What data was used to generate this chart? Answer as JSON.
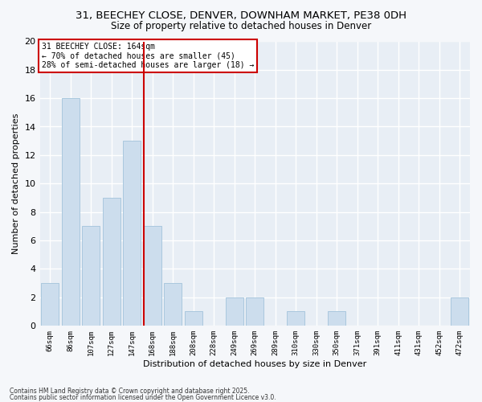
{
  "title1": "31, BEECHEY CLOSE, DENVER, DOWNHAM MARKET, PE38 0DH",
  "title2": "Size of property relative to detached houses in Denver",
  "xlabel": "Distribution of detached houses by size in Denver",
  "ylabel": "Number of detached properties",
  "bar_labels": [
    "66sqm",
    "86sqm",
    "107sqm",
    "127sqm",
    "147sqm",
    "168sqm",
    "188sqm",
    "208sqm",
    "228sqm",
    "249sqm",
    "269sqm",
    "289sqm",
    "310sqm",
    "330sqm",
    "350sqm",
    "371sqm",
    "391sqm",
    "411sqm",
    "431sqm",
    "452sqm",
    "472sqm"
  ],
  "bar_values": [
    3,
    16,
    7,
    9,
    13,
    7,
    3,
    1,
    0,
    2,
    2,
    0,
    1,
    0,
    1,
    0,
    0,
    0,
    0,
    0,
    2
  ],
  "bar_color": "#ccdded",
  "bar_edge_color": "#aac8de",
  "vline_x_idx": 5,
  "vline_color": "#cc0000",
  "annotation_text": "31 BEECHEY CLOSE: 164sqm\n← 70% of detached houses are smaller (45)\n28% of semi-detached houses are larger (18) →",
  "annotation_box_color": "#cc0000",
  "ylim": [
    0,
    20
  ],
  "yticks": [
    0,
    2,
    4,
    6,
    8,
    10,
    12,
    14,
    16,
    18,
    20
  ],
  "background_color": "#e8eef5",
  "plot_bg_color": "#e8eef5",
  "fig_bg_color": "#f5f7fa",
  "grid_color": "#ffffff",
  "footer1": "Contains HM Land Registry data © Crown copyright and database right 2025.",
  "footer2": "Contains public sector information licensed under the Open Government Licence v3.0."
}
